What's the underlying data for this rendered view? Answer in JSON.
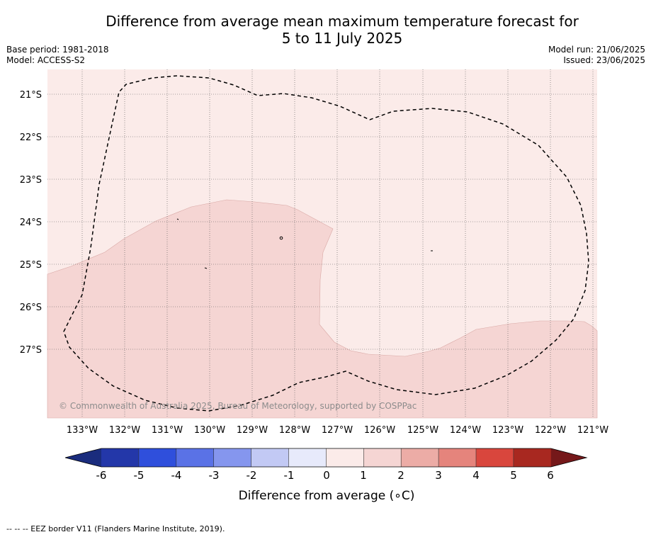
{
  "title_line1": "Difference from average mean maximum temperature forecast for",
  "title_line2": "5 to 11 July 2025",
  "meta_left": {
    "base_period": "Base period: 1981-2018",
    "model": "Model: ACCESS-S2"
  },
  "meta_right": {
    "model_run": "Model run: 21/06/2025",
    "issued": "Issued: 23/06/2025"
  },
  "map": {
    "lat_labels": [
      "21°S",
      "22°S",
      "23°S",
      "24°S",
      "25°S",
      "26°S",
      "27°S"
    ],
    "lon_labels": [
      "133°W",
      "132°W",
      "131°W",
      "130°W",
      "129°W",
      "128°W",
      "127°W",
      "126°W",
      "125°W",
      "124°W",
      "123°W",
      "122°W",
      "121°W"
    ],
    "copyright": "© Commonwealth of Australia 2025, Bureau of Meteorology, supported by COSPPac",
    "fill_colors": {
      "band_0_1": "#fbebe9",
      "band_1_2": "#f5d5d3"
    }
  },
  "colorbar": {
    "ticks": [
      "-6",
      "-5",
      "-4",
      "-3",
      "-2",
      "-1",
      "0",
      "1",
      "2",
      "3",
      "4",
      "5",
      "6"
    ],
    "colors": [
      "#2337a9",
      "#2f4fdc",
      "#5a72e6",
      "#8596ee",
      "#c2c9f4",
      "#e7eafb",
      "#fbebe9",
      "#f5d5d3",
      "#ecaca6",
      "#e5847c",
      "#d9463d",
      "#a82820"
    ],
    "under_color": "#1a2c7d",
    "over_color": "#75181a",
    "label": "Difference from average (∘C)"
  },
  "footnote": "--  --  -- EEZ border V11 (Flanders Marine Institute, 2019)."
}
